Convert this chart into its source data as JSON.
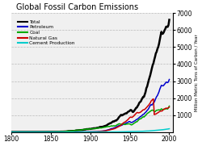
{
  "title": "Global Fossil Carbon Emissions",
  "ylabel": "Million Metric Tons of Carbon / Year",
  "xlim": [
    1800,
    2005
  ],
  "ylim": [
    0,
    7000
  ],
  "yticks": [
    1000,
    2000,
    3000,
    4000,
    5000,
    6000,
    7000
  ],
  "xticks": [
    1800,
    1850,
    1900,
    1950,
    2000
  ],
  "bg_color": "#f0f0f0",
  "line_colors": {
    "Total": "#000000",
    "Petroleum": "#0000cc",
    "Coal": "#00aa00",
    "Natural Gas": "#cc0000",
    "Cement Production": "#00cccc"
  },
  "legend_labels": [
    "Total",
    "Petroleum",
    "Coal",
    "Natural Gas",
    "Cement Production"
  ],
  "series_keys": [
    "Total",
    "Petroleum",
    "Coal",
    "Natural Gas",
    "Cement Production"
  ]
}
